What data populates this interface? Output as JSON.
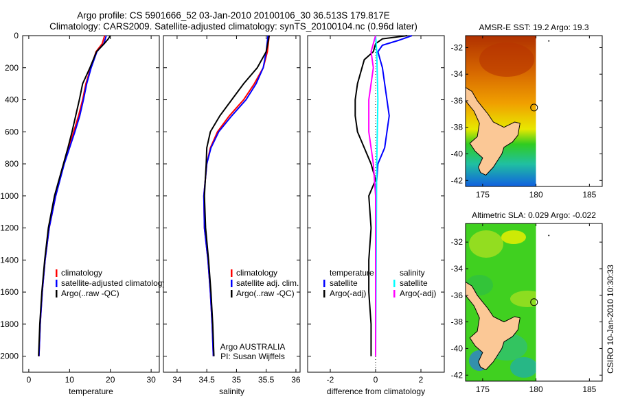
{
  "title_line1": "Argo profile: CS 5901666_52 03-Jan-2010 20100106_30 36.513S 179.817E",
  "title_line2": "Climatology: CARS2009. Satellite-adjusted climatology: synTS_20100104.nc (0.96d later)",
  "timestamp": "CSIRO 10-Jan-2010 10:30:33",
  "chart_data": [
    {
      "type": "line",
      "id": "temperature",
      "xlabel": "temperature",
      "xlim": [
        -1.5,
        32
      ],
      "ylim": [
        0,
        2100
      ],
      "xticks": [
        0,
        10,
        20,
        30
      ],
      "yticks": [
        0,
        200,
        400,
        600,
        800,
        1000,
        1200,
        1400,
        1600,
        1800,
        2000
      ],
      "legend": [
        "climatology",
        "satellite-adjusted climatology",
        "Argo(..raw -QC)"
      ],
      "series": [
        {
          "name": "climatology",
          "color": "#ff0000",
          "depth": [
            0,
            50,
            100,
            200,
            300,
            400,
            500,
            600,
            700,
            800,
            1000,
            1200,
            1400,
            1600,
            1800,
            2000
          ],
          "values": [
            18.6,
            18.0,
            16.5,
            15.2,
            14.0,
            13.2,
            12.2,
            11.0,
            9.8,
            8.6,
            6.6,
            5.0,
            4.0,
            3.3,
            2.8,
            2.5
          ]
        },
        {
          "name": "satellite-adjusted climatology",
          "color": "#0000ff",
          "depth": [
            0,
            50,
            100,
            200,
            300,
            400,
            500,
            600,
            700,
            800,
            1000,
            1200,
            1400,
            1600,
            1800,
            2000
          ],
          "values": [
            19.0,
            18.4,
            16.7,
            15.3,
            14.2,
            13.4,
            12.5,
            11.3,
            10.0,
            8.7,
            6.6,
            5.0,
            4.0,
            3.3,
            2.8,
            2.5
          ]
        },
        {
          "name": "Argo(..raw -QC)",
          "color": "#000000",
          "depth": [
            0,
            20,
            50,
            100,
            200,
            300,
            400,
            500,
            600,
            700,
            800,
            1000,
            1200,
            1400,
            1600,
            1800,
            2000
          ],
          "values": [
            20.0,
            19.5,
            18.5,
            16.6,
            15.0,
            13.2,
            12.4,
            11.5,
            10.6,
            9.6,
            8.5,
            6.3,
            4.8,
            3.9,
            3.2,
            2.7,
            2.4
          ]
        }
      ]
    },
    {
      "type": "line",
      "id": "salinity",
      "xlabel": "salinity",
      "xlim": [
        33.77,
        36.07
      ],
      "ylim": [
        0,
        2100
      ],
      "xticks": [
        34,
        34.5,
        35,
        35.5,
        36
      ],
      "legend": [
        "climatology",
        "satellite adj. clim.",
        "Argo(..raw -QC)"
      ],
      "annotation": [
        "Argo AUSTRALIA",
        "PI: Susan Wijffels"
      ],
      "series": [
        {
          "name": "climatology",
          "color": "#ff0000",
          "depth": [
            0,
            100,
            200,
            300,
            400,
            500,
            600,
            700,
            800,
            1000,
            1200,
            1400,
            1600,
            1800,
            2000
          ],
          "values": [
            35.55,
            35.52,
            35.45,
            35.3,
            35.12,
            34.88,
            34.68,
            34.56,
            34.5,
            34.45,
            34.46,
            34.52,
            34.56,
            34.59,
            34.61
          ]
        },
        {
          "name": "satellite adj. clim.",
          "color": "#0000ff",
          "depth": [
            0,
            100,
            200,
            300,
            400,
            500,
            600,
            700,
            800,
            1000,
            1200,
            1400,
            1600,
            1800,
            2000
          ],
          "values": [
            35.53,
            35.5,
            35.45,
            35.33,
            35.16,
            34.92,
            34.7,
            34.57,
            34.5,
            34.45,
            34.46,
            34.52,
            34.56,
            34.59,
            34.61
          ]
        },
        {
          "name": "Argo(..raw -QC)",
          "color": "#000000",
          "depth": [
            0,
            100,
            200,
            300,
            400,
            500,
            600,
            700,
            800,
            1000,
            1200,
            1400,
            1600,
            1800,
            2000
          ],
          "values": [
            35.55,
            35.5,
            35.35,
            35.12,
            34.92,
            34.72,
            34.56,
            34.5,
            34.49,
            34.46,
            34.48,
            34.53,
            34.57,
            34.6,
            34.62
          ]
        }
      ]
    },
    {
      "type": "line",
      "id": "difference",
      "xlabel": "difference from climatology",
      "xlim": [
        -3.0,
        3.03
      ],
      "ylim": [
        0,
        2100
      ],
      "xticks": [
        -2,
        0,
        2
      ],
      "legend_temperature": [
        "temperature",
        "satellite",
        "Argo(-adj)"
      ],
      "legend_salinity": [
        "salinity",
        "satellite",
        "Argo(-adj)"
      ],
      "series": [
        {
          "name": "temperature satellite",
          "color": "#0000ff",
          "depth": [
            0,
            30,
            60,
            100,
            200,
            300,
            400,
            500,
            600,
            700,
            800,
            900,
            1000,
            1200,
            1400,
            1600,
            1800,
            2000
          ],
          "values": [
            1.6,
            1.0,
            0.3,
            0.1,
            0.3,
            0.4,
            0.5,
            0.6,
            0.5,
            0.4,
            0.1,
            0.05,
            0.0,
            0.0,
            0.0,
            0.0,
            0.0,
            0.0
          ]
        },
        {
          "name": "temperature Argo(-adj)",
          "color": "#000000",
          "depth": [
            0,
            20,
            50,
            100,
            150,
            300,
            400,
            500,
            600,
            700,
            800,
            900,
            1000,
            1200,
            1400,
            1600,
            1800,
            2000
          ],
          "values": [
            1.4,
            0.3,
            0.0,
            -0.1,
            -0.5,
            -0.8,
            -0.9,
            -0.9,
            -0.8,
            -0.5,
            -0.2,
            0.0,
            -0.3,
            -0.2,
            -0.3,
            -0.3,
            -0.2,
            -0.2
          ]
        },
        {
          "name": "salinity satellite",
          "color": "#00ffff",
          "depth": [
            0,
            100,
            400,
            800,
            2000
          ],
          "values": [
            0.0,
            0.05,
            0.1,
            0.05,
            0.0
          ]
        },
        {
          "name": "salinity Argo(-adj)",
          "color": "#ff00ff",
          "depth": [
            0,
            100,
            200,
            400,
            600,
            800,
            1000,
            2000
          ],
          "values": [
            0.0,
            -0.2,
            -0.1,
            -0.3,
            -0.3,
            -0.1,
            0.0,
            0.0
          ]
        }
      ]
    },
    {
      "type": "heatmap",
      "id": "sst_map",
      "title": "AMSR-E SST: 19.2 Argo: 19.3",
      "xlim": [
        173.4,
        186.2
      ],
      "ylim": [
        -42.45,
        -31.1
      ],
      "xticks": [
        175,
        180,
        185
      ],
      "yticks": [
        -32,
        -34,
        -36,
        -38,
        -40,
        -42
      ],
      "data_lon_max": 180,
      "argo_position": [
        179.817,
        -36.513
      ]
    },
    {
      "type": "heatmap",
      "id": "sla_map",
      "title": "Altimetric SLA: 0.029 Argo: -0.022",
      "xlim": [
        173.4,
        186.2
      ],
      "ylim": [
        -42.45,
        -30.6
      ],
      "xticks": [
        175,
        180,
        185
      ],
      "yticks": [
        -32,
        -34,
        -36,
        -38,
        -40,
        -42
      ],
      "data_lon_max": 180,
      "argo_position": [
        179.817,
        -36.513
      ]
    }
  ],
  "coastline": [
    [
      173.4,
      -35.0
    ],
    [
      174.0,
      -35.3
    ],
    [
      174.5,
      -36.0
    ],
    [
      175.0,
      -36.5
    ],
    [
      175.5,
      -37.0
    ],
    [
      176.0,
      -37.6
    ],
    [
      177.0,
      -38.0
    ],
    [
      178.0,
      -37.6
    ],
    [
      178.5,
      -37.7
    ],
    [
      178.3,
      -38.6
    ],
    [
      177.8,
      -39.1
    ],
    [
      177.0,
      -39.5
    ],
    [
      176.8,
      -40.0
    ],
    [
      176.0,
      -41.0
    ],
    [
      175.3,
      -41.6
    ],
    [
      174.8,
      -41.4
    ],
    [
      174.6,
      -41.0
    ],
    [
      175.0,
      -40.3
    ],
    [
      174.3,
      -39.8
    ],
    [
      173.8,
      -39.2
    ],
    [
      174.5,
      -38.7
    ],
    [
      174.7,
      -37.7
    ],
    [
      174.2,
      -36.8
    ],
    [
      173.4,
      -36.0
    ]
  ]
}
